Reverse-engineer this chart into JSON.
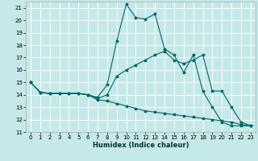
{
  "xlabel": "Humidex (Indice chaleur)",
  "xlim": [
    -0.5,
    23.5
  ],
  "ylim": [
    11,
    21.5
  ],
  "yticks": [
    11,
    12,
    13,
    14,
    15,
    16,
    17,
    18,
    19,
    20,
    21
  ],
  "xticks": [
    0,
    1,
    2,
    3,
    4,
    5,
    6,
    7,
    8,
    9,
    10,
    11,
    12,
    13,
    14,
    15,
    16,
    17,
    18,
    19,
    20,
    21,
    22,
    23
  ],
  "background_color": "#c5e8e8",
  "grid_color": "#ffffff",
  "line_color": "#006666",
  "line1_x": [
    0,
    1,
    2,
    3,
    4,
    5,
    6,
    7,
    8,
    9,
    10,
    11,
    12,
    13,
    14,
    15,
    16,
    17,
    18,
    19,
    20,
    21,
    22,
    23
  ],
  "line1_y": [
    15.0,
    14.2,
    14.1,
    14.1,
    14.1,
    14.1,
    14.0,
    13.8,
    14.8,
    18.3,
    21.3,
    20.2,
    20.1,
    20.5,
    17.7,
    17.2,
    15.8,
    17.2,
    14.3,
    13.0,
    11.8,
    11.5,
    11.5,
    11.5
  ],
  "line2_x": [
    0,
    1,
    2,
    3,
    4,
    5,
    6,
    7,
    8,
    9,
    10,
    11,
    12,
    13,
    14,
    15,
    16,
    17,
    18,
    19,
    20,
    21,
    22,
    23
  ],
  "line2_y": [
    15.0,
    14.2,
    14.1,
    14.1,
    14.1,
    14.1,
    14.0,
    13.7,
    14.0,
    15.5,
    16.0,
    16.4,
    16.8,
    17.2,
    17.5,
    16.8,
    16.5,
    16.8,
    17.2,
    14.3,
    14.3,
    13.0,
    11.8,
    11.5
  ],
  "line3_x": [
    0,
    1,
    2,
    3,
    4,
    5,
    6,
    7,
    8,
    9,
    10,
    11,
    12,
    13,
    14,
    15,
    16,
    17,
    18,
    19,
    20,
    21,
    22,
    23
  ],
  "line3_y": [
    15.0,
    14.2,
    14.1,
    14.1,
    14.1,
    14.1,
    14.0,
    13.6,
    13.5,
    13.3,
    13.1,
    12.9,
    12.7,
    12.6,
    12.5,
    12.4,
    12.3,
    12.2,
    12.1,
    12.0,
    11.9,
    11.8,
    11.6,
    11.5
  ],
  "xlabel_fontsize": 6.0,
  "tick_fontsize": 5.0
}
